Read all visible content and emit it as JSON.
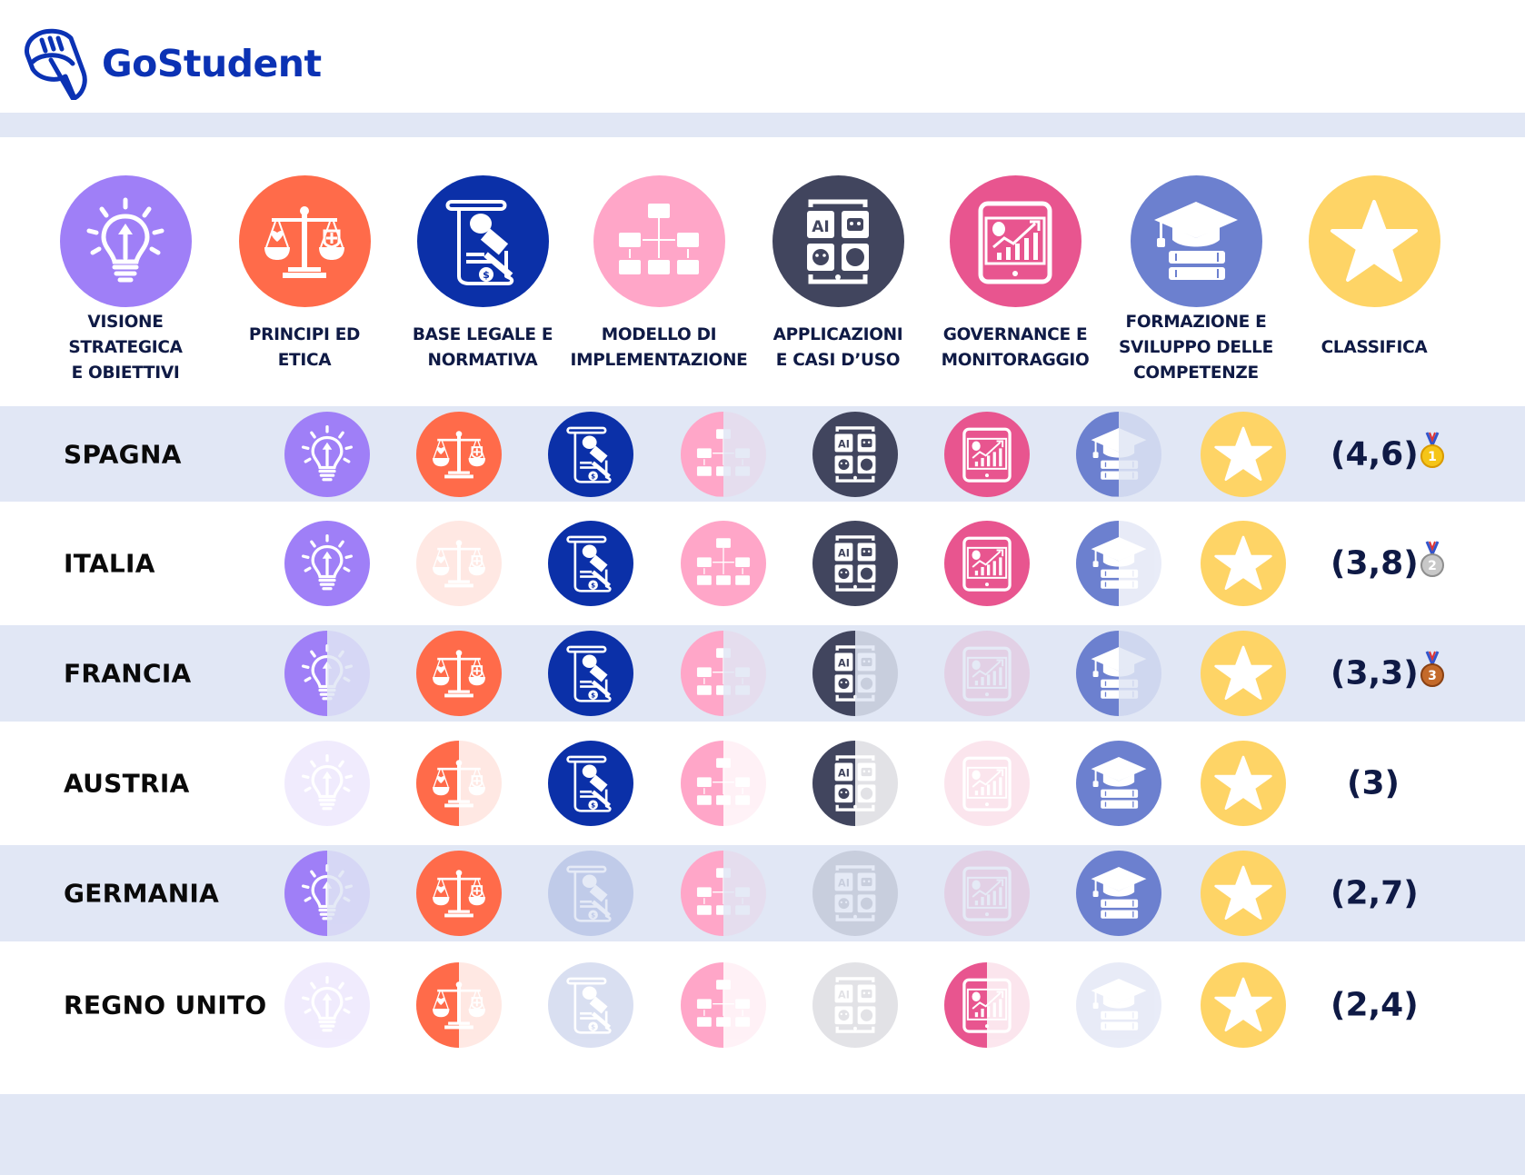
{
  "brand": {
    "name": "GoStudent",
    "color": "#0b32b4"
  },
  "colors": {
    "band": "#e1e7f5",
    "label": "#0f1a45",
    "visione": "#9f7ff7",
    "principi": "#ff6b4a",
    "base_legale": "#0b30a8",
    "modello": "#ffa6c8",
    "applicazioni": "#41455e",
    "governance": "#e8558f",
    "formazione": "#6c80cf",
    "classifica": "#fed466"
  },
  "columns": [
    {
      "key": "visione",
      "label": "VISIONE STRATEGICA\nE OBIETTIVI",
      "icon": "lightbulb-icon"
    },
    {
      "key": "principi",
      "label": "PRINCIPI ED\nETICA",
      "icon": "scales-icon"
    },
    {
      "key": "base_legale",
      "label": "BASE LEGALE E\nNORMATIVA",
      "icon": "legal-document-gavel-icon"
    },
    {
      "key": "modello",
      "label": "MODELLO DI\nIMPLEMENTAZIONE",
      "icon": "flowchart-icon"
    },
    {
      "key": "applicazioni",
      "label": "APPLICAZIONI\nE CASI D’USO",
      "icon": "ai-tablet-icon"
    },
    {
      "key": "governance",
      "label": "GOVERNANCE E\nMONITORAGGIO",
      "icon": "analytics-tablet-icon"
    },
    {
      "key": "formazione",
      "label": "FORMAZIONE E\nSVILUPPO DELLE\nCOMPETENZE",
      "icon": "graduation-cap-books-icon"
    },
    {
      "key": "classifica",
      "label": "CLASSIFICA",
      "icon": "star-icon"
    }
  ],
  "rows": [
    {
      "country": "SPAGNA",
      "score": "(4,6)",
      "medal": "gold",
      "medal_number": "1"
    },
    {
      "country": "ITALIA",
      "score": "(3,8)",
      "medal": "silver",
      "medal_number": "2"
    },
    {
      "country": "FRANCIA",
      "score": "(3,3)",
      "medal": "bronze",
      "medal_number": "3"
    },
    {
      "country": "AUSTRIA",
      "score": "(3)",
      "medal": null,
      "medal_number": null
    },
    {
      "country": "GERMANIA",
      "score": "(2,7)",
      "medal": null,
      "medal_number": null
    },
    {
      "country": "REGNO UNITO",
      "score": "(2,4)",
      "medal": null,
      "medal_number": null
    }
  ],
  "chart_data": {
    "type": "table",
    "title": "",
    "legend": {
      "full": 1,
      "half": 0.5,
      "none": 0
    },
    "categories": [
      "Visione strategica e obiettivi",
      "Principi ed etica",
      "Base legale e normativa",
      "Modello di implementazione",
      "Applicazioni e casi d'uso",
      "Governance e monitoraggio",
      "Formazione e sviluppo delle competenze"
    ],
    "series": [
      {
        "name": "Spagna",
        "values": [
          1,
          1,
          1,
          0.5,
          1,
          1,
          0.5
        ],
        "classifica": 4.6,
        "rank": 1
      },
      {
        "name": "Italia",
        "values": [
          1,
          0,
          1,
          1,
          1,
          1,
          0.5
        ],
        "classifica": 3.8,
        "rank": 2
      },
      {
        "name": "Francia",
        "values": [
          0.5,
          1,
          1,
          0.5,
          0.5,
          0,
          0.5
        ],
        "classifica": 3.3,
        "rank": 3
      },
      {
        "name": "Austria",
        "values": [
          0,
          0.5,
          1,
          0.5,
          0.5,
          0,
          1
        ],
        "classifica": 3,
        "rank": 4
      },
      {
        "name": "Germania",
        "values": [
          0.5,
          1,
          0,
          0.5,
          0,
          0,
          1
        ],
        "classifica": 2.7,
        "rank": 5
      },
      {
        "name": "Regno Unito",
        "values": [
          0,
          0.5,
          0,
          0.5,
          0,
          0.5,
          0
        ],
        "classifica": 2.4,
        "rank": 6
      }
    ]
  }
}
